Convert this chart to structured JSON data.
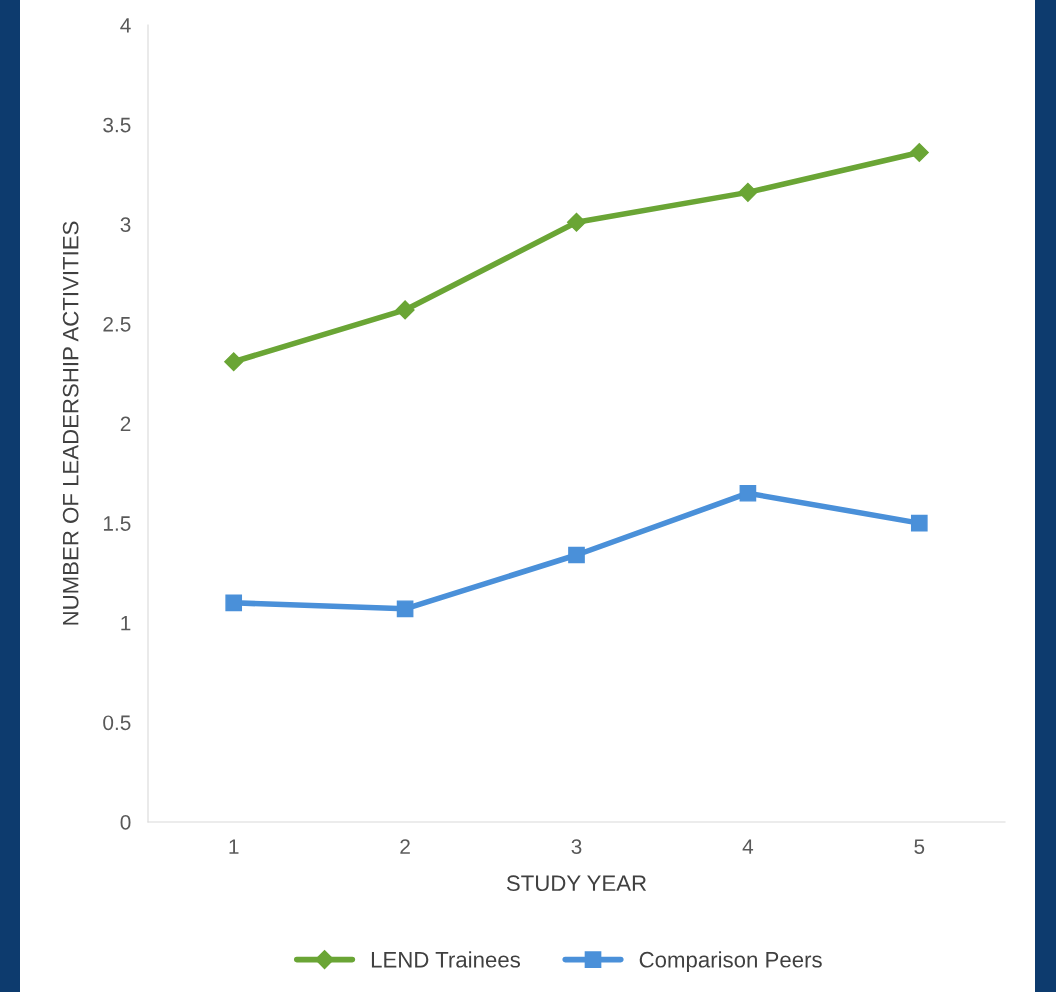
{
  "chart_data": {
    "type": "line",
    "xlabel": "STUDY YEAR",
    "ylabel": "NUMBER OF LEADERSHIP ACTIVITIES",
    "categories": [
      "1",
      "2",
      "3",
      "4",
      "5"
    ],
    "series": [
      {
        "name": "LEND Trainees",
        "color": "#6aa535",
        "marker": "diamond",
        "values": [
          2.31,
          2.57,
          3.01,
          3.16,
          3.36
        ]
      },
      {
        "name": "Comparison Peers",
        "color": "#4a90d9",
        "marker": "square",
        "values": [
          1.1,
          1.07,
          1.34,
          1.65,
          1.5
        ]
      }
    ],
    "ylim": [
      0,
      4
    ],
    "yticks": [
      0,
      0.5,
      1,
      1.5,
      2,
      2.5,
      3,
      3.5,
      4
    ],
    "grid": false,
    "legend": "bottom",
    "line_style": "solid"
  }
}
